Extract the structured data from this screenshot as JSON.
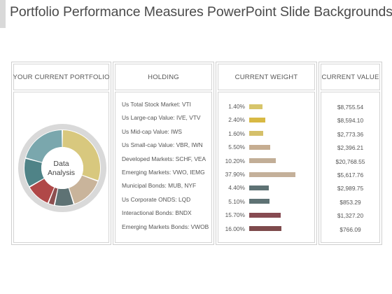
{
  "slide": {
    "title": "Portfolio Performance Measures PowerPoint Slide Backgrounds"
  },
  "columns": {
    "portfolio": "YOUR CURRENT PORTFOLIO",
    "holding": "HOLDING",
    "weight": "CURRENT WEIGHT",
    "value": "CURRENT VALUE"
  },
  "donut": {
    "label_line1": "Data",
    "label_line2": "Analysis",
    "segment_colors": [
      "#d8c87e",
      "#c9b49b",
      "#5e7274",
      "#8d4f50",
      "#b04848",
      "#4f8387",
      "#7aa7ad"
    ]
  },
  "holdings": [
    {
      "name": "Us Total Stock Market: VTI",
      "weight": "1.40%",
      "weight_value": 1.4,
      "value": "$8,755.54",
      "color": "#d7c56b"
    },
    {
      "name": "Us Large-cap Value: IVE, VTV",
      "weight": "2.40%",
      "weight_value": 2.4,
      "value": "$8,594.10",
      "color": "#d8b944"
    },
    {
      "name": "Us Mid-cap Value: IWS",
      "weight": "1.60%",
      "weight_value": 1.6,
      "value": "$2,773.36",
      "color": "#d5c06a"
    },
    {
      "name": "Us Small-cap Value: VBR, IWN",
      "weight": "5.50%",
      "weight_value": 5.5,
      "value": "$2,396.21",
      "color": "#c6ad91"
    },
    {
      "name": "Developed Markets: SCHF, VEA",
      "weight": "10.20%",
      "weight_value": 10.2,
      "value": "$20,768.55",
      "color": "#c2ae97"
    },
    {
      "name": "Emerging Markets: VWO, IEMG",
      "weight": "37.90%",
      "weight_value": 37.9,
      "value": "$5,617.76",
      "color": "#c4b09a"
    },
    {
      "name": "Municipal Bonds: MUB, NYF",
      "weight": "4.40%",
      "weight_value": 4.4,
      "value": "$2,989.75",
      "color": "#5e7274"
    },
    {
      "name": "Us Corporate ONDS: LQD",
      "weight": "5.10%",
      "weight_value": 5.1,
      "value": "$853.29",
      "color": "#5e7274"
    },
    {
      "name": "Interactional Bonds: BNDX",
      "weight": "15.70%",
      "weight_value": 15.7,
      "value": "$1,327.20",
      "color": "#874b52"
    },
    {
      "name": "Emerging Markets Bonds: VWOB",
      "weight": "16.00%",
      "weight_value": 16.0,
      "value": "$766.09",
      "color": "#7e4a4c"
    }
  ]
}
